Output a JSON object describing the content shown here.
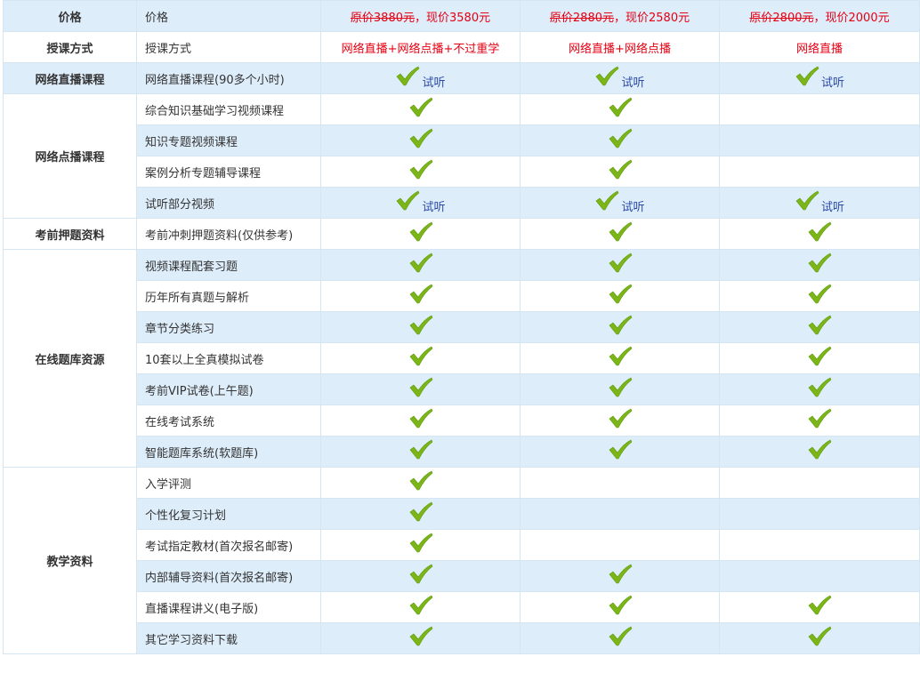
{
  "groups": [
    {
      "label": "价格",
      "rows": [
        {
          "item": "价格",
          "cells": [
            {
              "original": "原价3880元",
              "current": "，现价3580元"
            },
            {
              "original": "原价2880元",
              "current": "，现价2580元"
            },
            {
              "original": "原价2800元",
              "current": "，现价2000元"
            }
          ]
        }
      ]
    },
    {
      "label": "授课方式",
      "rows": [
        {
          "item": "授课方式",
          "cells": [
            {
              "text": "网络直播+网络点播+不过重学"
            },
            {
              "text": "网络直播+网络点播"
            },
            {
              "text": "网络直播"
            }
          ]
        }
      ]
    },
    {
      "label": "网络直播课程",
      "rows": [
        {
          "item": "网络直播课程(90多个小时)",
          "cells": [
            {
              "check": true,
              "link": "试听"
            },
            {
              "check": true,
              "link": "试听"
            },
            {
              "check": true,
              "link": "试听"
            }
          ]
        }
      ]
    },
    {
      "label": "网络点播课程",
      "rows": [
        {
          "item": "综合知识基础学习视频课程",
          "cells": [
            {
              "check": true
            },
            {
              "check": true
            },
            {
              "check": false
            }
          ]
        },
        {
          "item": "知识专题视频课程",
          "cells": [
            {
              "check": true
            },
            {
              "check": true
            },
            {
              "check": false
            }
          ]
        },
        {
          "item": "案例分析专题辅导课程",
          "cells": [
            {
              "check": true
            },
            {
              "check": true
            },
            {
              "check": false
            }
          ]
        },
        {
          "item": "试听部分视频",
          "cells": [
            {
              "check": true,
              "link": "试听"
            },
            {
              "check": true,
              "link": "试听"
            },
            {
              "check": true,
              "link": "试听"
            }
          ]
        }
      ]
    },
    {
      "label": "考前押题资料",
      "rows": [
        {
          "item": "考前冲刺押题资料(仅供参考)",
          "cells": [
            {
              "check": true
            },
            {
              "check": true
            },
            {
              "check": true
            }
          ]
        }
      ]
    },
    {
      "label": "在线题库资源",
      "rows": [
        {
          "item": "视频课程配套习题",
          "cells": [
            {
              "check": true
            },
            {
              "check": true
            },
            {
              "check": true
            }
          ]
        },
        {
          "item": "历年所有真题与解析",
          "cells": [
            {
              "check": true
            },
            {
              "check": true
            },
            {
              "check": true
            }
          ]
        },
        {
          "item": "章节分类练习",
          "cells": [
            {
              "check": true
            },
            {
              "check": true
            },
            {
              "check": true
            }
          ]
        },
        {
          "item": "10套以上全真模拟试卷",
          "cells": [
            {
              "check": true
            },
            {
              "check": true
            },
            {
              "check": true
            }
          ]
        },
        {
          "item": "考前VIP试卷(上午题)",
          "cells": [
            {
              "check": true
            },
            {
              "check": true
            },
            {
              "check": true
            }
          ]
        },
        {
          "item": "在线考试系统",
          "cells": [
            {
              "check": true
            },
            {
              "check": true
            },
            {
              "check": true
            }
          ]
        },
        {
          "item": "智能题库系统(软题库)",
          "cells": [
            {
              "check": true
            },
            {
              "check": true
            },
            {
              "check": true
            }
          ]
        }
      ]
    },
    {
      "label": "教学资料",
      "rows": [
        {
          "item": "入学评测",
          "cells": [
            {
              "check": true
            },
            {
              "check": false
            },
            {
              "check": false
            }
          ]
        },
        {
          "item": "个性化复习计划",
          "cells": [
            {
              "check": true
            },
            {
              "check": false
            },
            {
              "check": false
            }
          ]
        },
        {
          "item": "考试指定教材(首次报名邮寄)",
          "cells": [
            {
              "check": true
            },
            {
              "check": false
            },
            {
              "check": false
            }
          ]
        },
        {
          "item": "内部辅导资料(首次报名邮寄)",
          "cells": [
            {
              "check": true
            },
            {
              "check": true
            },
            {
              "check": false
            }
          ]
        },
        {
          "item": "直播课程讲义(电子版)",
          "cells": [
            {
              "check": true
            },
            {
              "check": true
            },
            {
              "check": true
            }
          ]
        },
        {
          "item": "其它学习资料下载",
          "cells": [
            {
              "check": true
            },
            {
              "check": true
            },
            {
              "check": true
            }
          ]
        }
      ]
    }
  ]
}
